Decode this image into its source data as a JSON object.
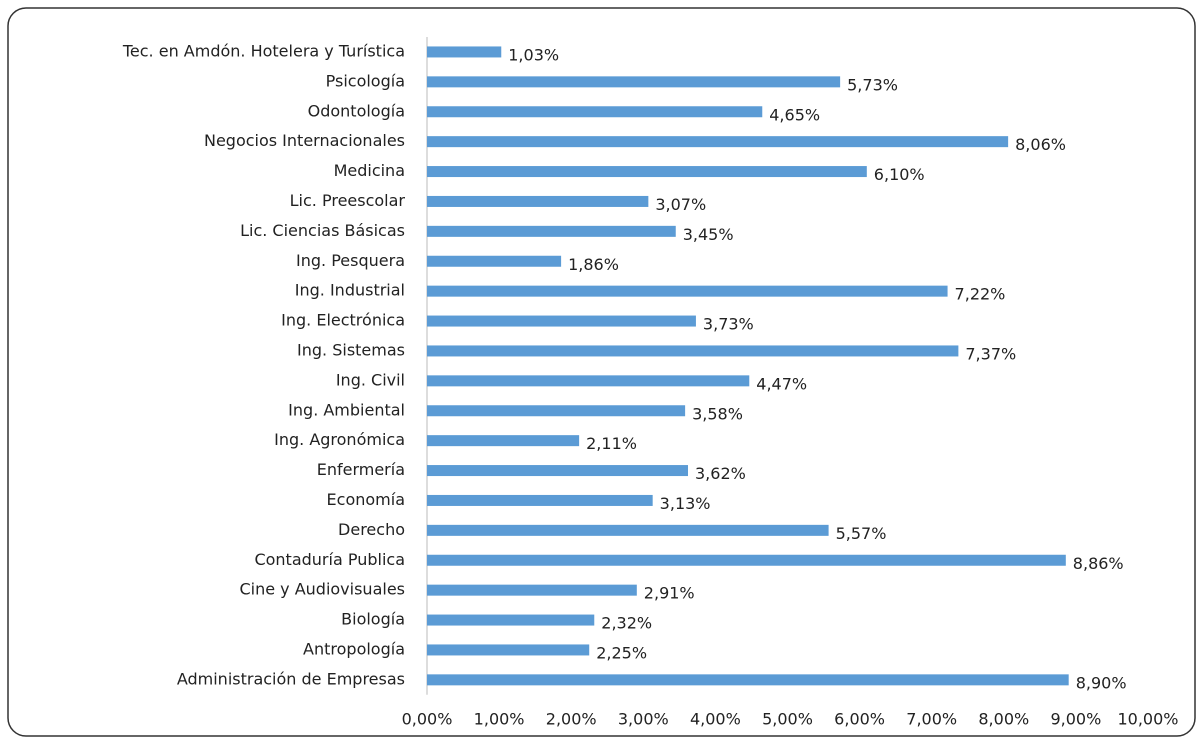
{
  "chart_data": {
    "type": "bar",
    "orientation": "horizontal",
    "color": "#5b9bd5",
    "grid": false,
    "categories": [
      "Tec. en Amdón. Hotelera y Turística",
      "Psicología",
      "Odontología",
      "Negocios Internacionales",
      "Medicina",
      "Lic. Preescolar",
      "Lic. Ciencias Básicas",
      "Ing. Pesquera",
      "Ing. Industrial",
      "Ing. Electrónica",
      "Ing. Sistemas",
      "Ing. Civil",
      "Ing. Ambiental",
      "Ing. Agronómica",
      "Enfermería",
      "Economía",
      "Derecho",
      "Contaduría Publica",
      "Cine y Audiovisuales",
      "Biología",
      "Antropología",
      "Administración de Empresas"
    ],
    "values": [
      1.03,
      5.73,
      4.65,
      8.06,
      6.1,
      3.07,
      3.45,
      1.86,
      7.22,
      3.73,
      7.37,
      4.47,
      3.58,
      2.11,
      3.62,
      3.13,
      5.57,
      8.86,
      2.91,
      2.32,
      2.25,
      8.9
    ],
    "value_labels": [
      "1,03%",
      "5,73%",
      "4,65%",
      "8,06%",
      "6,10%",
      "3,07%",
      "3,45%",
      "1,86%",
      "7,22%",
      "3,73%",
      "7,37%",
      "4,47%",
      "3,58%",
      "2,11%",
      "3,62%",
      "3,13%",
      "5,57%",
      "8,86%",
      "2,91%",
      "2,32%",
      "2,25%",
      "8,90%"
    ],
    "xlim": [
      0,
      10
    ],
    "xticks": [
      {
        "value": 0,
        "label": "0,00%"
      },
      {
        "value": 1,
        "label": "1,00%"
      },
      {
        "value": 2,
        "label": "2,00%"
      },
      {
        "value": 3,
        "label": "3,00%"
      },
      {
        "value": 4,
        "label": "4,00%"
      },
      {
        "value": 5,
        "label": "5,00%"
      },
      {
        "value": 6,
        "label": "6,00%"
      },
      {
        "value": 7,
        "label": "7,00%"
      },
      {
        "value": 8,
        "label": "8,00%"
      },
      {
        "value": 9,
        "label": "9,00%"
      },
      {
        "value": 10,
        "label": "10,00%"
      }
    ]
  }
}
